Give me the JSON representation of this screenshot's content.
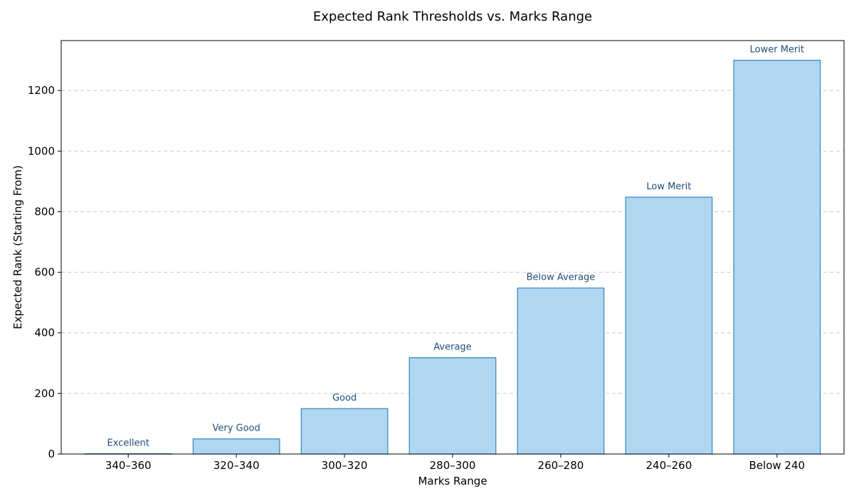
{
  "chart_data": {
    "type": "bar",
    "title": "Expected Rank Thresholds vs. Marks Range",
    "xlabel": "Marks Range",
    "ylabel": "Expected Rank (Starting From)",
    "categories": [
      "340–360",
      "320–340",
      "300–320",
      "280–300",
      "260–280",
      "240–260",
      "Below 240"
    ],
    "values": [
      1,
      50,
      150,
      318,
      548,
      848,
      1300
    ],
    "bar_labels": [
      "Excellent",
      "Very Good",
      "Good",
      "Average",
      "Below Average",
      "Low Merit",
      "Lower Merit"
    ],
    "ylim": [
      0,
      1365
    ],
    "yticks": [
      0,
      200,
      400,
      600,
      800,
      1000,
      1200
    ],
    "grid": "horizontal-dashed",
    "legend": "none",
    "colors": {
      "bar_fill": "#b0d6f0",
      "bar_edge": "#2f86c4",
      "bar_label": "#1f4e79",
      "grid": "#cccccc",
      "axis": "#000000",
      "text": "#000000"
    }
  }
}
